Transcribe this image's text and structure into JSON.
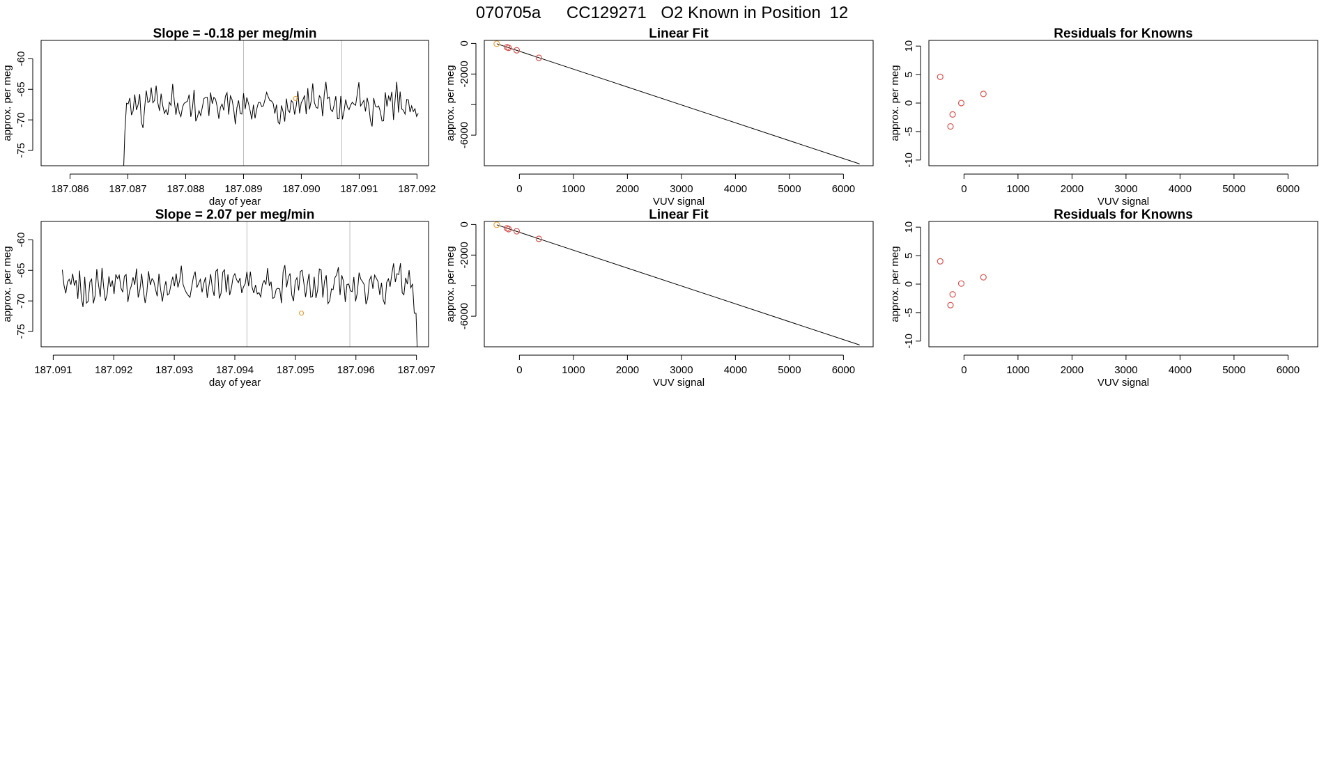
{
  "header": {
    "run_id": "070705a",
    "cylinder": "CC129271",
    "description": "O2 Known in Position",
    "position": "12"
  },
  "colors": {
    "line": "#000000",
    "points": "#d9534f",
    "highlight": "#e8a33a",
    "vline": "#bbbbbb"
  },
  "chart_data": [
    {
      "id": "ts1",
      "type": "line",
      "title": "Slope =  -0.18  per meg/min",
      "xlabel": "day of year",
      "ylabel": "approx. per meg",
      "xlim": [
        187.0855,
        187.0922
      ],
      "ylim": [
        -77.5,
        -57
      ],
      "xticks": [
        187.086,
        187.087,
        187.088,
        187.089,
        187.09,
        187.091,
        187.092
      ],
      "xtick_labels": [
        "187.086",
        "187.087",
        "187.088",
        "187.089",
        "187.090",
        "187.091",
        "187.092"
      ],
      "yticks": [
        -75,
        -70,
        -65,
        -60
      ],
      "ytick_labels": [
        "-75",
        "-70",
        "-65",
        "-60"
      ],
      "vlines": [
        187.089,
        187.0907
      ],
      "highlight": {
        "x": 187.0899,
        "y": -66.5
      },
      "series": {
        "x_start": 187.08692,
        "x_step": 2.85e-05,
        "seed": 11,
        "mean": -67.5,
        "amplitude": 2.6,
        "start_drop": true
      }
    },
    {
      "id": "fit1",
      "type": "scatter",
      "title": "Linear Fit",
      "xlabel": "VUV signal",
      "ylabel": "approx. per meg",
      "xlim": [
        -650,
        6550
      ],
      "ylim": [
        -8000,
        200
      ],
      "xticks": [
        0,
        1000,
        2000,
        3000,
        4000,
        5000,
        6000
      ],
      "xtick_labels": [
        "0",
        "1000",
        "2000",
        "3000",
        "4000",
        "5000",
        "6000"
      ],
      "yticks": [
        0,
        -2000,
        -4000,
        -6000
      ],
      "ytick_labels": [
        "0",
        "-2000",
        "",
        "-6000"
      ],
      "fit_line": {
        "x": [
          -420,
          6300
        ],
        "y": [
          -20,
          -7880
        ]
      },
      "points": [
        {
          "x": -420,
          "y": -20,
          "color": "highlight"
        },
        {
          "x": -230,
          "y": -250,
          "color": "points"
        },
        {
          "x": -200,
          "y": -290,
          "color": "points"
        },
        {
          "x": -50,
          "y": -450,
          "color": "points"
        },
        {
          "x": 360,
          "y": -940,
          "color": "points"
        }
      ]
    },
    {
      "id": "res1",
      "type": "scatter",
      "title": "Residuals for Knowns",
      "xlabel": "VUV signal",
      "ylabel": "approx. per meg",
      "xlim": [
        -650,
        6550
      ],
      "ylim": [
        -11,
        11
      ],
      "xticks": [
        0,
        1000,
        2000,
        3000,
        4000,
        5000,
        6000
      ],
      "xtick_labels": [
        "0",
        "1000",
        "2000",
        "3000",
        "4000",
        "5000",
        "6000"
      ],
      "yticks": [
        -10,
        -5,
        0,
        5,
        10
      ],
      "ytick_labels": [
        "-10",
        "-5",
        "0",
        "5",
        "10"
      ],
      "points": [
        {
          "x": -440,
          "y": 4.6,
          "color": "points"
        },
        {
          "x": -210,
          "y": -2.0,
          "color": "points"
        },
        {
          "x": -250,
          "y": -4.1,
          "color": "points"
        },
        {
          "x": -50,
          "y": 0.0,
          "color": "points"
        },
        {
          "x": 360,
          "y": 1.6,
          "color": "points"
        }
      ]
    },
    {
      "id": "ts2",
      "type": "line",
      "title": "Slope =  2.07  per meg/min",
      "xlabel": "day of year",
      "ylabel": "approx. per meg",
      "xlim": [
        187.0908,
        187.0972
      ],
      "ylim": [
        -77.5,
        -57
      ],
      "xticks": [
        187.091,
        187.092,
        187.093,
        187.094,
        187.095,
        187.096,
        187.097
      ],
      "xtick_labels": [
        "187.091",
        "187.092",
        "187.093",
        "187.094",
        "187.095",
        "187.096",
        "187.097"
      ],
      "yticks": [
        -75,
        -70,
        -65,
        -60
      ],
      "ytick_labels": [
        "-75",
        "-70",
        "-65",
        "-60"
      ],
      "vlines": [
        187.0942,
        187.0959
      ],
      "highlight": {
        "x": 187.0951,
        "y": -72.0
      },
      "series": {
        "x_start": 187.09115,
        "x_step": 2.85e-05,
        "seed": 29,
        "mean": -67.5,
        "amplitude": 2.6,
        "end_drop": true
      }
    },
    {
      "id": "fit2",
      "type": "scatter",
      "title": "Linear Fit",
      "xlabel": "VUV signal",
      "ylabel": "approx. per meg",
      "xlim": [
        -650,
        6550
      ],
      "ylim": [
        -8000,
        200
      ],
      "xticks": [
        0,
        1000,
        2000,
        3000,
        4000,
        5000,
        6000
      ],
      "xtick_labels": [
        "0",
        "1000",
        "2000",
        "3000",
        "4000",
        "5000",
        "6000"
      ],
      "yticks": [
        0,
        -2000,
        -4000,
        -6000
      ],
      "ytick_labels": [
        "0",
        "-2000",
        "",
        "-6000"
      ],
      "fit_line": {
        "x": [
          -420,
          6300
        ],
        "y": [
          -20,
          -7880
        ]
      },
      "points": [
        {
          "x": -420,
          "y": -20,
          "color": "highlight"
        },
        {
          "x": -230,
          "y": -250,
          "color": "points"
        },
        {
          "x": -200,
          "y": -300,
          "color": "points"
        },
        {
          "x": -50,
          "y": -440,
          "color": "points"
        },
        {
          "x": 360,
          "y": -940,
          "color": "points"
        }
      ]
    },
    {
      "id": "res2",
      "type": "scatter",
      "title": "Residuals for Knowns",
      "xlabel": "VUV signal",
      "ylabel": "approx. per meg",
      "xlim": [
        -650,
        6550
      ],
      "ylim": [
        -11,
        11
      ],
      "xticks": [
        0,
        1000,
        2000,
        3000,
        4000,
        5000,
        6000
      ],
      "xtick_labels": [
        "0",
        "1000",
        "2000",
        "3000",
        "4000",
        "5000",
        "6000"
      ],
      "yticks": [
        -10,
        -5,
        0,
        5,
        10
      ],
      "ytick_labels": [
        "-10",
        "-5",
        "0",
        "5",
        "10"
      ],
      "points": [
        {
          "x": -440,
          "y": 4.0,
          "color": "points"
        },
        {
          "x": -210,
          "y": -1.8,
          "color": "points"
        },
        {
          "x": -250,
          "y": -3.7,
          "color": "points"
        },
        {
          "x": -50,
          "y": 0.1,
          "color": "points"
        },
        {
          "x": 360,
          "y": 1.2,
          "color": "points"
        }
      ]
    }
  ]
}
